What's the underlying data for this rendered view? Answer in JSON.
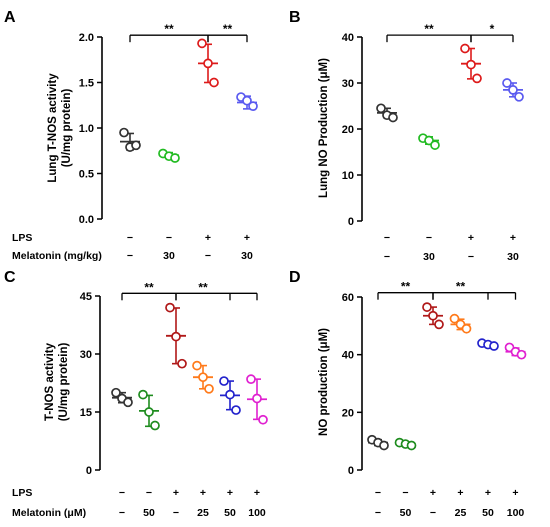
{
  "chart_data": [
    {
      "panel": "A",
      "type": "scatter",
      "ylabel": "Lung T-NOS activity\n(U/mg protein)",
      "ylim": [
        0,
        2.0
      ],
      "yticks": [
        0.0,
        0.5,
        1.0,
        1.5,
        2.0
      ],
      "ytick_labels": [
        "0.0",
        "0.5",
        "1.0",
        "1.5",
        "2.0"
      ],
      "condition_rows": [
        {
          "label": "LPS",
          "values": [
            "−",
            "−",
            "+",
            "+"
          ]
        },
        {
          "label": "Melatonin (mg/kg)",
          "values": [
            "−",
            "30",
            "−",
            "30"
          ]
        }
      ],
      "groups": [
        {
          "color": "#333333",
          "points": [
            0.95,
            0.79,
            0.81
          ],
          "mean": 0.85,
          "sd": 0.09
        },
        {
          "color": "#22bb22",
          "points": [
            0.72,
            0.69,
            0.67
          ],
          "mean": 0.7,
          "sd": 0.03
        },
        {
          "color": "#dd1a1a",
          "points": [
            1.93,
            1.71,
            1.5
          ],
          "mean": 1.71,
          "sd": 0.21
        },
        {
          "color": "#5a5af0",
          "points": [
            1.34,
            1.3,
            1.24
          ],
          "mean": 1.28,
          "sd": 0.07
        }
      ],
      "significance": [
        {
          "from": 0,
          "to": 2,
          "label": "**",
          "level": 2.02
        },
        {
          "from": 2,
          "to": 3,
          "label": "**",
          "level": 2.02
        }
      ]
    },
    {
      "panel": "B",
      "type": "scatter",
      "ylabel": "Lung NO Production (μM)",
      "ylim": [
        0,
        40
      ],
      "yticks": [
        0,
        10,
        20,
        30,
        40
      ],
      "ytick_labels": [
        "0",
        "10",
        "20",
        "30",
        "40"
      ],
      "condition_rows": [
        {
          "label": "",
          "values": [
            "−",
            "−",
            "+",
            "+"
          ]
        },
        {
          "label": "",
          "values": [
            "−",
            "30",
            "−",
            "30"
          ]
        }
      ],
      "groups": [
        {
          "color": "#333333",
          "points": [
            24.5,
            23.0,
            22.5
          ],
          "mean": 23.5,
          "sd": 1.0
        },
        {
          "color": "#22bb22",
          "points": [
            18.0,
            17.5,
            16.5
          ],
          "mean": 17.5,
          "sd": 0.8
        },
        {
          "color": "#dd1a1a",
          "points": [
            37.5,
            34.0,
            31.0
          ],
          "mean": 34.2,
          "sd": 3.3
        },
        {
          "color": "#5a5af0",
          "points": [
            30.0,
            28.5,
            27.0
          ],
          "mean": 28.5,
          "sd": 1.5
        }
      ],
      "significance": [
        {
          "from": 0,
          "to": 2,
          "label": "**",
          "level": 40.4
        },
        {
          "from": 2,
          "to": 3,
          "label": "*",
          "level": 40.4
        }
      ]
    },
    {
      "panel": "C",
      "type": "scatter",
      "ylabel": "T-NOS activity\n(U/mg protein)",
      "ylim": [
        0,
        45
      ],
      "yticks": [
        0,
        15,
        30,
        45
      ],
      "ytick_labels": [
        "0",
        "15",
        "30",
        "45"
      ],
      "condition_rows": [
        {
          "label": "LPS",
          "values": [
            "−",
            "−",
            "+",
            "+",
            "+",
            "+"
          ]
        },
        {
          "label": "Melatonin (μM)",
          "values": [
            "−",
            "50",
            "−",
            "25",
            "50",
            "100"
          ]
        }
      ],
      "groups": [
        {
          "color": "#333333",
          "points": [
            20.0,
            18.5,
            17.5
          ],
          "mean": 18.7,
          "sd": 1.3
        },
        {
          "color": "#1e8c1e",
          "points": [
            19.5,
            15.0,
            11.5
          ],
          "mean": 15.3,
          "sd": 4.0
        },
        {
          "color": "#b01818",
          "points": [
            42.0,
            34.5,
            27.5
          ],
          "mean": 34.7,
          "sd": 7.2
        },
        {
          "color": "#ff7a1a",
          "points": [
            27.0,
            24.0,
            21.0
          ],
          "mean": 24.0,
          "sd": 3.0
        },
        {
          "color": "#2222cc",
          "points": [
            23.0,
            19.5,
            15.5
          ],
          "mean": 19.3,
          "sd": 3.7
        },
        {
          "color": "#e020d0",
          "points": [
            23.5,
            18.5,
            13.0
          ],
          "mean": 18.3,
          "sd": 5.2
        }
      ],
      "significance": [
        {
          "from": 0,
          "to": 2,
          "label": "**",
          "level": 45.7
        },
        {
          "from": 2,
          "to": 5,
          "label": "**",
          "level": 45.7,
          "branch_to": [
            4,
            5
          ],
          "label_at": 3
        }
      ]
    },
    {
      "panel": "D",
      "type": "scatter",
      "ylabel": "NO production (μM)",
      "ylim": [
        0,
        60
      ],
      "yticks": [
        0,
        20,
        40,
        60
      ],
      "ytick_labels": [
        "0",
        "20",
        "40",
        "60"
      ],
      "condition_rows": [
        {
          "label": "",
          "values": [
            "−",
            "−",
            "+",
            "+",
            "+",
            "+"
          ]
        },
        {
          "label": "",
          "values": [
            "−",
            "50",
            "−",
            "25",
            "50",
            "100"
          ]
        }
      ],
      "groups": [
        {
          "color": "#333333",
          "points": [
            10.5,
            9.5,
            8.5
          ],
          "mean": 9.5,
          "sd": 1.0
        },
        {
          "color": "#1e8c1e",
          "points": [
            9.5,
            9.0,
            8.5
          ],
          "mean": 9.0,
          "sd": 0.5
        },
        {
          "color": "#b01818",
          "points": [
            56.5,
            53.5,
            50.5
          ],
          "mean": 53.5,
          "sd": 3.0
        },
        {
          "color": "#ff7a1a",
          "points": [
            52.5,
            50.5,
            49.0
          ],
          "mean": 50.5,
          "sd": 1.8
        },
        {
          "color": "#2222cc",
          "points": [
            44.0,
            43.5,
            43.0
          ],
          "mean": 43.5,
          "sd": 0.5
        },
        {
          "color": "#e020d0",
          "points": [
            42.5,
            41.0,
            40.0
          ],
          "mean": 41.0,
          "sd": 1.3
        }
      ],
      "significance": [
        {
          "from": 0,
          "to": 2,
          "label": "**",
          "level": 61.5
        },
        {
          "from": 2,
          "to": 5,
          "label": "**",
          "level": 61.5,
          "branch_to": [
            4,
            5
          ],
          "label_at": 3
        }
      ]
    }
  ]
}
